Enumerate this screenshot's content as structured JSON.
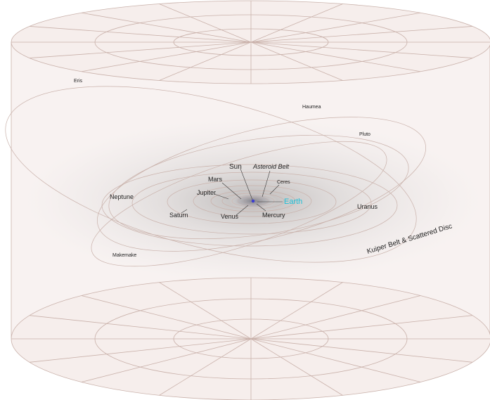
{
  "labels": {
    "eris": "Eris",
    "haumea": "Haumea",
    "pluto": "Pluto",
    "sun": "Sun",
    "asteroid_belt": "Asteroid Belt",
    "mars": "Mars",
    "ceres": "Ceres",
    "jupiter": "Jupiter",
    "earth": "Earth",
    "neptune": "Neptune",
    "uranus": "Uranus",
    "saturn": "Saturn",
    "venus": "Venus",
    "mercury": "Mercury",
    "makemake": "Makemake",
    "kuiper": "Kuiper Belt & Scattered Disc"
  },
  "colors": {
    "cylinder_fill": "#f8f2f1",
    "grid_line": "#c9b1aa",
    "haze": "#9a9a9a",
    "earth_label": "#1fc0d8",
    "sun": "#3b3bd1",
    "text": "#1e1e1e"
  }
}
